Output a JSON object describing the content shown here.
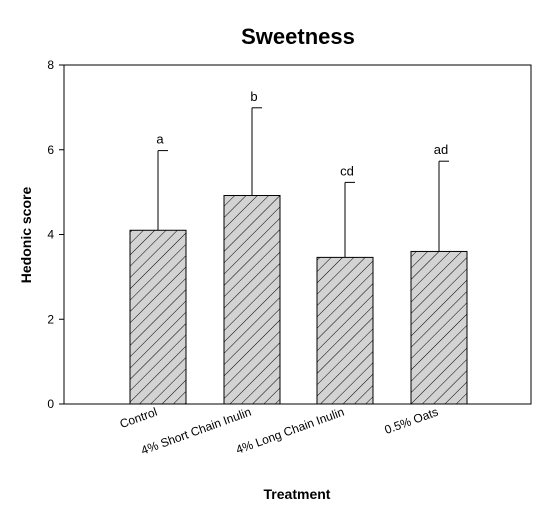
{
  "chart_data": {
    "type": "bar",
    "title": "Sweetness",
    "xlabel": "Treatment",
    "ylabel": "Hedonic score",
    "ylim": [
      0,
      8
    ],
    "yticks": [
      "0",
      "2",
      "4",
      "6",
      "8"
    ],
    "categories": [
      "Control",
      "4% Short Chain Inulin",
      "4% Long Chain Inulin",
      "0.5% Oats"
    ],
    "values": [
      4.1,
      4.92,
      3.46,
      3.6
    ],
    "error_upper": [
      5.98,
      6.99,
      5.23,
      5.73
    ],
    "significance_labels": [
      "a",
      "b",
      "cd",
      "ad"
    ],
    "bar_fill": "#d3d3d3",
    "bar_pattern": "diagonal-hatch",
    "grid": false,
    "legend": "none"
  }
}
